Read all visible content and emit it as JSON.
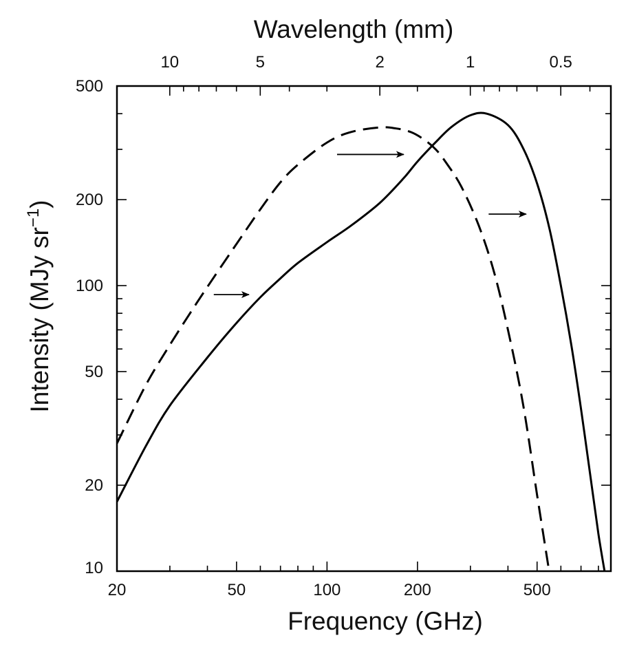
{
  "chart_data": {
    "type": "line",
    "title": "",
    "xlabel": "Frequency (GHz)",
    "top_xlabel": "Wavelength (mm)",
    "ylabel_prefix": "Intensity (MJy sr",
    "ylabel_sup": "−1",
    "ylabel_suffix": ")",
    "xscale": "log",
    "yscale": "log",
    "xlim": [
      20,
      880
    ],
    "ylim": [
      10,
      500
    ],
    "grid": false,
    "legend": "none",
    "x_ticks": [
      20,
      50,
      100,
      200,
      500
    ],
    "x_tick_labels": [
      "20",
      "50",
      "100",
      "200",
      "500"
    ],
    "y_ticks": [
      10,
      20,
      50,
      100,
      200,
      500
    ],
    "y_tick_labels": [
      "10",
      "20",
      "50",
      "100",
      "200",
      "500"
    ],
    "wavelength_ticks_mm": [
      10,
      5,
      2,
      1,
      0.5
    ],
    "wavelength_tick_labels": [
      "10",
      "5",
      "2",
      "1",
      "0.5"
    ],
    "series": [
      {
        "style": "solid",
        "color": "#000000",
        "x": [
          20,
          25,
          30,
          40,
          50,
          60,
          70,
          80,
          100,
          120,
          150,
          180,
          200,
          230,
          260,
          300,
          340,
          400,
          450,
          500,
          550,
          600,
          650,
          700,
          750,
          800,
          850
        ],
        "y": [
          17.5,
          27.5,
          38,
          56,
          74,
          91,
          106,
          120,
          142,
          162,
          195,
          238,
          272,
          318,
          360,
          395,
          400,
          365,
          302,
          228,
          158,
          100,
          62,
          37,
          22,
          13.5,
          9.2
        ]
      },
      {
        "style": "dashed",
        "color": "#000000",
        "x": [
          20,
          25,
          30,
          35,
          40,
          50,
          60,
          70,
          80,
          100,
          120,
          150,
          170,
          190,
          210,
          230,
          250,
          280,
          320,
          360,
          400,
          450,
          500,
          550
        ],
        "y": [
          28,
          45,
          62,
          80,
          99,
          140,
          185,
          230,
          265,
          317,
          345,
          358,
          355,
          345,
          325,
          300,
          268,
          222,
          162,
          111,
          70,
          38,
          18.5,
          9.8
        ]
      }
    ],
    "annotations": [
      {
        "type": "arrow",
        "from": [
          42,
          93
        ],
        "to": [
          55,
          93
        ]
      },
      {
        "type": "arrow",
        "from": [
          108,
          288
        ],
        "to": [
          180,
          288
        ]
      },
      {
        "type": "arrow",
        "from": [
          345,
          178
        ],
        "to": [
          460,
          178
        ]
      }
    ]
  }
}
